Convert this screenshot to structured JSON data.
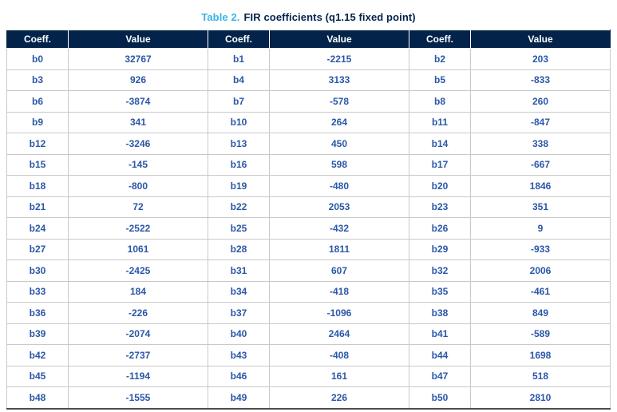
{
  "title": {
    "label": "Table 2.",
    "text": "FIR coefficients (q1.15 fixed point)"
  },
  "table": {
    "headers": [
      "Coeff.",
      "Value",
      "Coeff.",
      "Value",
      "Coeff.",
      "Value"
    ],
    "rows": [
      [
        "b0",
        "32767",
        "b1",
        "-2215",
        "b2",
        "203"
      ],
      [
        "b3",
        "926",
        "b4",
        "3133",
        "b5",
        "-833"
      ],
      [
        "b6",
        "-3874",
        "b7",
        "-578",
        "b8",
        "260"
      ],
      [
        "b9",
        "341",
        "b10",
        "264",
        "b11",
        "-847"
      ],
      [
        "b12",
        "-3246",
        "b13",
        "450",
        "b14",
        "338"
      ],
      [
        "b15",
        "-145",
        "b16",
        "598",
        "b17",
        "-667"
      ],
      [
        "b18",
        "-800",
        "b19",
        "-480",
        "b20",
        "1846"
      ],
      [
        "b21",
        "72",
        "b22",
        "2053",
        "b23",
        "351"
      ],
      [
        "b24",
        "-2522",
        "b25",
        "-432",
        "b26",
        "9"
      ],
      [
        "b27",
        "1061",
        "b28",
        "1811",
        "b29",
        "-933"
      ],
      [
        "b30",
        "-2425",
        "b31",
        "607",
        "b32",
        "2006"
      ],
      [
        "b33",
        "184",
        "b34",
        "-418",
        "b35",
        "-461"
      ],
      [
        "b36",
        "-226",
        "b37",
        "-1096",
        "b38",
        "849"
      ],
      [
        "b39",
        "-2074",
        "b40",
        "2464",
        "b41",
        "-589"
      ],
      [
        "b42",
        "-2737",
        "b43",
        "-408",
        "b44",
        "1698"
      ],
      [
        "b45",
        "-1194",
        "b46",
        "161",
        "b47",
        "518"
      ],
      [
        "b48",
        "-1555",
        "b49",
        "226",
        "b50",
        "2810"
      ]
    ]
  },
  "colors": {
    "header_bg": "#03234b",
    "header_text": "#ffffff",
    "title_accent": "#3cb4e6",
    "title_text": "#03234b",
    "body_text": "#2b57a7",
    "grid_border": "#c9c9c9"
  }
}
